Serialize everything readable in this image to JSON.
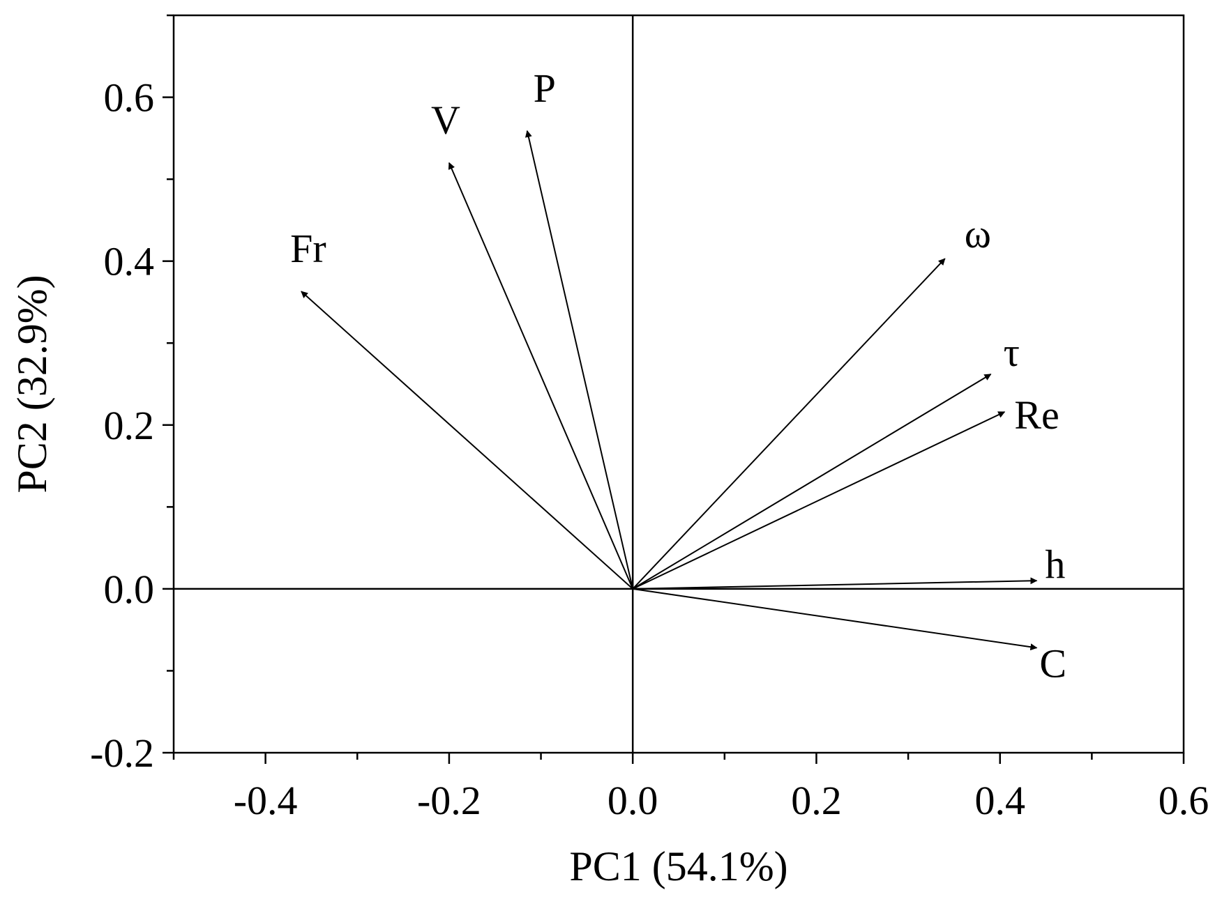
{
  "chart_data": {
    "type": "biplot",
    "xlabel": "PC1 (54.1%)",
    "ylabel": "PC2 (32.9%)",
    "xlim": [
      -0.5,
      0.6
    ],
    "ylim": [
      -0.2,
      0.7
    ],
    "xticks": [
      -0.4,
      -0.2,
      0.0,
      0.2,
      0.4,
      0.6
    ],
    "xtick_labels": [
      "-0.4",
      "-0.2",
      "0.0",
      "0.2",
      "0.4",
      "0.6"
    ],
    "yticks": [
      -0.2,
      0.0,
      0.2,
      0.4,
      0.6
    ],
    "ytick_labels": [
      "-0.2",
      "0.0",
      "0.2",
      "0.4",
      "0.6"
    ],
    "minor_x_step": 0.1,
    "minor_y_step": 0.1,
    "zero_lines": true,
    "color": "#000000",
    "vectors": [
      {
        "name": "Fr",
        "x": -0.361,
        "y": 0.363
      },
      {
        "name": "V",
        "x": -0.2,
        "y": 0.52
      },
      {
        "name": "P",
        "x": -0.115,
        "y": 0.559
      },
      {
        "name": "ω",
        "x": 0.34,
        "y": 0.403
      },
      {
        "name": "τ",
        "x": 0.39,
        "y": 0.262
      },
      {
        "name": "Re",
        "x": 0.405,
        "y": 0.216
      },
      {
        "name": "h",
        "x": 0.44,
        "y": 0.01
      },
      {
        "name": "C",
        "x": 0.44,
        "y": -0.072
      }
    ]
  }
}
